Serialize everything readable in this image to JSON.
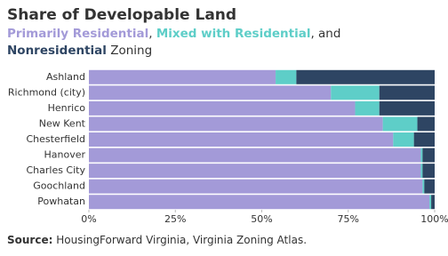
{
  "chart_data": {
    "type": "stacked-bar-horizontal",
    "title": "Share of Developable Land",
    "subtitle_parts": [
      ", ",
      ", and",
      "Zoning"
    ],
    "source_label": "Source:",
    "source": "HousingForward Virginia, Virginia Zoning Atlas.",
    "categories": [
      "Ashland",
      "Richmond (city)",
      "Henrico",
      "New Kent",
      "Chesterfield",
      "Hanover",
      "Charles City",
      "Goochland",
      "Powhatan"
    ],
    "series": [
      {
        "name": "Primarily Residential",
        "color": "#a39ad8",
        "values": [
          54,
          70,
          77,
          85,
          88,
          96,
          96,
          96.5,
          98.5
        ]
      },
      {
        "name": "Mixed with Residential",
        "color": "#5ecec8",
        "values": [
          6,
          14,
          7,
          10,
          6,
          0.5,
          0.5,
          0.5,
          0.5
        ]
      },
      {
        "name": "Nonresidential",
        "color": "#2e4563",
        "values": [
          40,
          16,
          16,
          5,
          6,
          3.5,
          3.5,
          3,
          1
        ]
      }
    ],
    "xlim": [
      0,
      100
    ],
    "xticks": [
      {
        "value": 0,
        "label": "0%"
      },
      {
        "value": 25,
        "label": "25%"
      },
      {
        "value": 50,
        "label": "50%"
      },
      {
        "value": 75,
        "label": "75%"
      },
      {
        "value": 100,
        "label": "100%"
      }
    ]
  }
}
